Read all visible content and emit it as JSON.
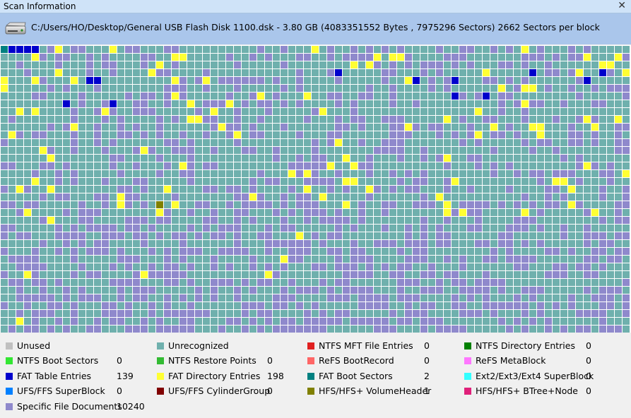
{
  "window": {
    "title": "Scan Information",
    "close_glyph": "✕"
  },
  "disk": {
    "icon": "hard-disk-icon",
    "path": "C:/Users/HO/Desktop/General USB Flash Disk 1100.dsk - 3.80 GB (4083351552 Bytes , 7975296 Sectors) 2662 Sectors per block"
  },
  "colors": {
    "unused": "#c0c0c0",
    "unrecognized": "#6fb0ad",
    "specific": "#8f89cc",
    "fat_directory": "#ffff33",
    "fat_table": "#0000cc",
    "hfs_volume_header": "#808000",
    "ntfs_mft": "#e02020",
    "ntfs_dir": "#008000",
    "ntfs_boot": "#33e633",
    "ntfs_restore": "#33bb33",
    "refs_boot": "#ff6666",
    "refs_meta": "#ff77ff",
    "fat_boot": "#008080",
    "ext_super": "#33ffff",
    "ufs_super": "#0080ff",
    "ufs_cylinder": "#800000",
    "hfs_btree": "#e0207a"
  },
  "legend": [
    {
      "key": "unused",
      "label": "Unused",
      "count": ""
    },
    {
      "key": "unrecognized",
      "label": "Unrecognized",
      "count": ""
    },
    {
      "key": "ntfs_mft",
      "label": "NTFS MFT File Entries",
      "count": "0"
    },
    {
      "key": "ntfs_dir",
      "label": "NTFS Directory Entries",
      "count": "0"
    },
    {
      "key": "ntfs_boot",
      "label": "NTFS Boot Sectors",
      "count": "0"
    },
    {
      "key": "ntfs_restore",
      "label": "NTFS Restore Points",
      "count": "0"
    },
    {
      "key": "refs_boot",
      "label": "ReFS BootRecord",
      "count": "0"
    },
    {
      "key": "refs_meta",
      "label": "ReFS MetaBlock",
      "count": "0"
    },
    {
      "key": "fat_table",
      "label": "FAT Table Entries",
      "count": "139"
    },
    {
      "key": "fat_directory",
      "label": "FAT Directory Entries",
      "count": "198"
    },
    {
      "key": "fat_boot",
      "label": "FAT Boot Sectors",
      "count": "2"
    },
    {
      "key": "ext_super",
      "label": "Ext2/Ext3/Ext4 SuperBlock",
      "count": "0"
    },
    {
      "key": "ufs_super",
      "label": "UFS/FFS SuperBlock",
      "count": "0"
    },
    {
      "key": "ufs_cylinder",
      "label": "UFS/FFS CylinderGroup",
      "count": "0"
    },
    {
      "key": "hfs_volume_header",
      "label": "HFS/HFS+ VolumeHeader",
      "count": "1"
    },
    {
      "key": "hfs_btree",
      "label": "HFS/HFS+ BTree+Node",
      "count": "0"
    },
    {
      "key": "specific",
      "label": "Specific File Documents",
      "count": "10240"
    }
  ]
}
